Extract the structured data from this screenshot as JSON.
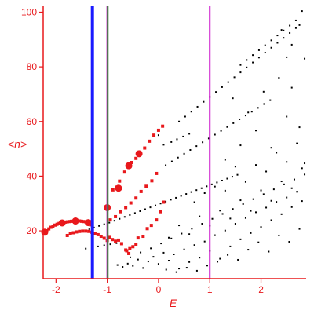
{
  "chart_data": {
    "type": "scatter",
    "title": "",
    "xlabel": "E",
    "ylabel": "<n>",
    "xlim": [
      -2.25,
      2.88
    ],
    "ylim": [
      2.5,
      101
    ],
    "x_ticks": [
      -2,
      -1,
      0,
      1,
      2
    ],
    "x_tick_labels": [
      "-2",
      "-1",
      "0",
      "1",
      "2"
    ],
    "y_ticks": [
      20,
      40,
      60,
      80,
      100
    ],
    "y_tick_labels": [
      "20",
      "40",
      "60",
      "80",
      "100"
    ],
    "grid": false,
    "legend": "none",
    "colors": {
      "axis": "#e8181c",
      "red_series": "#e8181c",
      "black_series": "#000000",
      "blue_line": "#1a1aff",
      "magenta_line": "#cc19cc",
      "green_line": "#2a8a2a"
    },
    "vertical_lines": [
      {
        "x": -1.29,
        "color": "#1a1aff"
      },
      {
        "x": -1.0,
        "color": "#cc19cc"
      },
      {
        "x": -0.99,
        "color": "#2a8a2a"
      },
      {
        "x": 1.0,
        "color": "#cc19cc"
      }
    ],
    "red_series": {
      "points": [
        [
          -2.21,
          19.3
        ],
        [
          -2.18,
          20.0
        ],
        [
          -2.14,
          20.7
        ],
        [
          -2.1,
          21.3
        ],
        [
          -2.06,
          21.7
        ],
        [
          -2.02,
          22.1
        ],
        [
          -1.98,
          22.4
        ],
        [
          -1.94,
          22.7
        ],
        [
          -1.9,
          22.9
        ],
        [
          -1.86,
          23.1
        ],
        [
          -1.82,
          23.2
        ],
        [
          -1.78,
          23.3
        ],
        [
          -1.74,
          23.4
        ],
        [
          -1.7,
          23.5
        ],
        [
          -1.66,
          23.5
        ],
        [
          -1.62,
          23.6
        ],
        [
          -1.58,
          23.6
        ],
        [
          -1.54,
          23.6
        ],
        [
          -1.5,
          23.5
        ],
        [
          -1.46,
          23.4
        ],
        [
          -1.42,
          23.3
        ],
        [
          -1.38,
          23.0
        ],
        [
          -1.34,
          22.7
        ],
        [
          -1.31,
          22.2
        ],
        [
          -1.78,
          18.3
        ],
        [
          -1.72,
          18.9
        ],
        [
          -1.66,
          19.3
        ],
        [
          -1.6,
          19.6
        ],
        [
          -1.54,
          19.8
        ],
        [
          -1.48,
          19.9
        ],
        [
          -1.42,
          19.9
        ],
        [
          -1.36,
          19.8
        ],
        [
          -1.3,
          19.5
        ],
        [
          -1.24,
          19.1
        ],
        [
          -1.18,
          18.6
        ],
        [
          -1.12,
          18.0
        ],
        [
          -1.06,
          17.3
        ],
        [
          -1.0,
          16.5
        ],
        [
          -0.96,
          17.6
        ],
        [
          -0.9,
          16.8
        ],
        [
          -0.84,
          16.2
        ],
        [
          -0.78,
          16.6
        ],
        [
          -0.72,
          15.3
        ],
        [
          -0.64,
          13.0
        ],
        [
          -0.56,
          13.5
        ],
        [
          -0.5,
          14.2
        ],
        [
          -0.44,
          15.0
        ],
        [
          -0.4,
          17.4
        ],
        [
          -0.3,
          18.0
        ],
        [
          -0.62,
          12.7
        ],
        [
          -0.58,
          11.7
        ],
        [
          -1.0,
          28.5
        ],
        [
          -0.89,
          35.0
        ],
        [
          -0.82,
          36.0
        ],
        [
          -0.76,
          38.2
        ],
        [
          -0.66,
          41.5
        ],
        [
          -0.58,
          43.5
        ],
        [
          -0.52,
          45.0
        ],
        [
          -0.44,
          46.5
        ],
        [
          -0.38,
          48.0
        ],
        [
          -0.27,
          50.3
        ],
        [
          -0.18,
          52.8
        ],
        [
          -0.09,
          55.0
        ],
        [
          0.0,
          56.8
        ],
        [
          0.08,
          58.3
        ],
        [
          -0.94,
          24.0
        ],
        [
          -0.84,
          25.2
        ],
        [
          -0.74,
          27.0
        ],
        [
          -0.64,
          28.5
        ],
        [
          -0.54,
          30.2
        ],
        [
          -0.44,
          32.0
        ],
        [
          -0.34,
          34.4
        ],
        [
          -0.24,
          36.3
        ],
        [
          -0.13,
          38.3
        ],
        [
          -0.04,
          41.0
        ],
        [
          -0.22,
          20.8
        ],
        [
          -0.14,
          22.0
        ],
        [
          -0.04,
          24.0
        ],
        [
          0.04,
          27.0
        ],
        [
          0.1,
          30.5
        ]
      ],
      "big_points": [
        [
          -2.22,
          19.5
        ],
        [
          -1.88,
          22.9
        ],
        [
          -1.62,
          23.6
        ],
        [
          -1.37,
          23.0
        ],
        [
          -1.0,
          28.5
        ],
        [
          -0.78,
          35.6
        ],
        [
          -0.58,
          43.8
        ],
        [
          -0.38,
          48.2
        ]
      ]
    },
    "black_series": {
      "points": [
        [
          -1.35,
          20.6
        ],
        [
          -1.26,
          21.2
        ],
        [
          -1.16,
          21.8
        ],
        [
          -1.06,
          22.4
        ],
        [
          -0.96,
          23.0
        ],
        [
          -0.86,
          23.7
        ],
        [
          -0.76,
          24.4
        ],
        [
          -0.66,
          25.1
        ],
        [
          -0.56,
          25.8
        ],
        [
          -0.46,
          26.5
        ],
        [
          -0.36,
          27.2
        ],
        [
          -0.26,
          27.9
        ],
        [
          -0.16,
          28.6
        ],
        [
          -0.06,
          29.3
        ],
        [
          0.04,
          30.0
        ],
        [
          0.14,
          30.7
        ],
        [
          0.24,
          31.4
        ],
        [
          0.34,
          32.1
        ],
        [
          0.44,
          32.8
        ],
        [
          0.54,
          33.5
        ],
        [
          0.64,
          34.2
        ],
        [
          0.74,
          34.9
        ],
        [
          0.84,
          35.6
        ],
        [
          0.94,
          36.3
        ],
        [
          1.04,
          37.0
        ],
        [
          1.14,
          37.7
        ],
        [
          1.24,
          38.4
        ],
        [
          1.34,
          39.1
        ],
        [
          1.44,
          39.8
        ],
        [
          1.54,
          40.5
        ],
        [
          0.14,
          44.0
        ],
        [
          0.26,
          45.4
        ],
        [
          0.38,
          46.8
        ],
        [
          0.5,
          48.2
        ],
        [
          0.62,
          49.6
        ],
        [
          0.74,
          51.0
        ],
        [
          0.86,
          52.4
        ],
        [
          0.98,
          53.8
        ],
        [
          1.1,
          55.2
        ],
        [
          1.22,
          56.6
        ],
        [
          1.34,
          58.0
        ],
        [
          1.46,
          59.4
        ],
        [
          1.58,
          60.8
        ],
        [
          1.7,
          62.2
        ],
        [
          1.82,
          63.6
        ],
        [
          1.94,
          65.0
        ],
        [
          2.06,
          66.4
        ],
        [
          2.18,
          67.8
        ],
        [
          0.4,
          60.0
        ],
        [
          0.52,
          61.8
        ],
        [
          0.64,
          63.6
        ],
        [
          0.76,
          65.4
        ],
        [
          0.88,
          67.2
        ],
        [
          1.0,
          69.0
        ],
        [
          1.12,
          70.8
        ],
        [
          1.24,
          72.6
        ],
        [
          1.36,
          74.4
        ],
        [
          1.48,
          76.2
        ],
        [
          1.6,
          78.0
        ],
        [
          1.72,
          79.8
        ],
        [
          1.84,
          81.6
        ],
        [
          1.96,
          83.4
        ],
        [
          2.08,
          85.2
        ],
        [
          2.2,
          87.0
        ],
        [
          2.32,
          88.8
        ],
        [
          2.44,
          90.6
        ],
        [
          2.56,
          92.4
        ],
        [
          2.68,
          94.2
        ],
        [
          1.6,
          80.7
        ],
        [
          1.72,
          82.5
        ],
        [
          1.84,
          84.3
        ],
        [
          1.96,
          86.1
        ],
        [
          2.08,
          87.9
        ],
        [
          2.2,
          89.7
        ],
        [
          2.32,
          91.5
        ],
        [
          2.44,
          93.3
        ],
        [
          2.56,
          95.1
        ],
        [
          2.68,
          97.0
        ],
        [
          2.8,
          100.4
        ],
        [
          0.0,
          55.0
        ],
        [
          0.1,
          51.5
        ],
        [
          0.25,
          52.5
        ],
        [
          0.36,
          53.5
        ],
        [
          0.48,
          54.5
        ],
        [
          0.6,
          55.5
        ],
        [
          -1.42,
          13.5
        ],
        [
          -1.3,
          13.9
        ],
        [
          -1.18,
          14.3
        ],
        [
          -1.06,
          14.7
        ],
        [
          -0.94,
          15.1
        ],
        [
          -0.82,
          15.5
        ],
        [
          -0.8,
          7.5
        ],
        [
          -0.7,
          6.8
        ],
        [
          -0.6,
          8.0
        ],
        [
          -0.5,
          7.2
        ],
        [
          -0.4,
          9.5
        ],
        [
          -0.3,
          6.4
        ],
        [
          -0.2,
          8.8
        ],
        [
          -0.1,
          10.5
        ],
        [
          0.0,
          7.9
        ],
        [
          0.1,
          12.0
        ],
        [
          0.2,
          9.1
        ],
        [
          0.3,
          11.4
        ],
        [
          0.4,
          6.2
        ],
        [
          0.5,
          13.2
        ],
        [
          0.6,
          8.6
        ],
        [
          0.7,
          14.8
        ],
        [
          0.8,
          10.2
        ],
        [
          0.9,
          16.1
        ],
        [
          1.0,
          12.7
        ],
        [
          1.1,
          18.4
        ],
        [
          1.2,
          9.8
        ],
        [
          1.3,
          20.1
        ],
        [
          1.4,
          14.3
        ],
        [
          1.5,
          22.6
        ],
        [
          1.6,
          16.9
        ],
        [
          1.7,
          24.7
        ],
        [
          1.8,
          19.2
        ],
        [
          1.9,
          26.8
        ],
        [
          2.0,
          21.4
        ],
        [
          2.1,
          28.5
        ],
        [
          2.2,
          23.9
        ],
        [
          2.3,
          30.6
        ],
        [
          2.4,
          26.1
        ],
        [
          2.5,
          32.2
        ],
        [
          2.6,
          28.7
        ],
        [
          2.7,
          34.3
        ],
        [
          2.8,
          30.9
        ],
        [
          -0.55,
          10.3
        ],
        [
          -0.35,
          12.1
        ],
        [
          -0.15,
          13.6
        ],
        [
          0.05,
          15.4
        ],
        [
          0.25,
          17.2
        ],
        [
          0.45,
          19.0
        ],
        [
          0.65,
          20.8
        ],
        [
          0.85,
          22.6
        ],
        [
          1.05,
          24.4
        ],
        [
          1.25,
          26.2
        ],
        [
          1.45,
          28.0
        ],
        [
          1.65,
          29.8
        ],
        [
          1.85,
          31.6
        ],
        [
          2.05,
          33.4
        ],
        [
          2.25,
          35.2
        ],
        [
          2.45,
          37.0
        ],
        [
          2.65,
          38.8
        ],
        [
          2.85,
          40.6
        ],
        [
          0.15,
          5.8
        ],
        [
          0.35,
          4.9
        ],
        [
          0.55,
          6.5
        ],
        [
          0.75,
          5.4
        ],
        [
          0.95,
          7.3
        ],
        [
          1.15,
          8.7
        ],
        [
          1.35,
          11.2
        ],
        [
          1.55,
          9.4
        ],
        [
          1.75,
          13.1
        ],
        [
          1.95,
          15.8
        ],
        [
          2.15,
          12.4
        ],
        [
          2.35,
          18.3
        ],
        [
          2.55,
          16.0
        ],
        [
          2.75,
          20.7
        ],
        [
          0.2,
          17.5
        ],
        [
          0.4,
          22.0
        ],
        [
          0.6,
          18.8
        ],
        [
          0.8,
          25.3
        ],
        [
          1.0,
          21.9
        ],
        [
          1.2,
          27.4
        ],
        [
          1.4,
          24.5
        ],
        [
          1.6,
          31.2
        ],
        [
          1.8,
          27.3
        ],
        [
          2.0,
          34.8
        ],
        [
          2.2,
          31.0
        ],
        [
          2.4,
          38.1
        ],
        [
          2.6,
          35.6
        ],
        [
          2.8,
          42.9
        ],
        [
          0.7,
          30.5
        ],
        [
          0.9,
          33.8
        ],
        [
          1.1,
          36.2
        ],
        [
          1.3,
          34.7
        ],
        [
          1.5,
          43.5
        ],
        [
          1.7,
          37.9
        ],
        [
          1.9,
          44.1
        ],
        [
          2.1,
          41.7
        ],
        [
          2.3,
          48.6
        ],
        [
          2.5,
          45.2
        ],
        [
          2.7,
          52.0
        ],
        [
          2.85,
          44.7
        ],
        [
          1.3,
          46.0
        ],
        [
          1.6,
          51.3
        ],
        [
          1.9,
          56.7
        ],
        [
          2.2,
          50.4
        ],
        [
          2.5,
          61.8
        ],
        [
          2.75,
          57.9
        ],
        [
          1.45,
          68.5
        ],
        [
          1.75,
          63.3
        ],
        [
          2.05,
          70.9
        ],
        [
          2.35,
          76.0
        ],
        [
          2.6,
          72.4
        ],
        [
          2.85,
          83.0
        ],
        [
          2.4,
          93.5
        ],
        [
          2.6,
          88.1
        ],
        [
          2.75,
          95.3
        ],
        [
          2.5,
          83.5
        ]
      ]
    }
  }
}
